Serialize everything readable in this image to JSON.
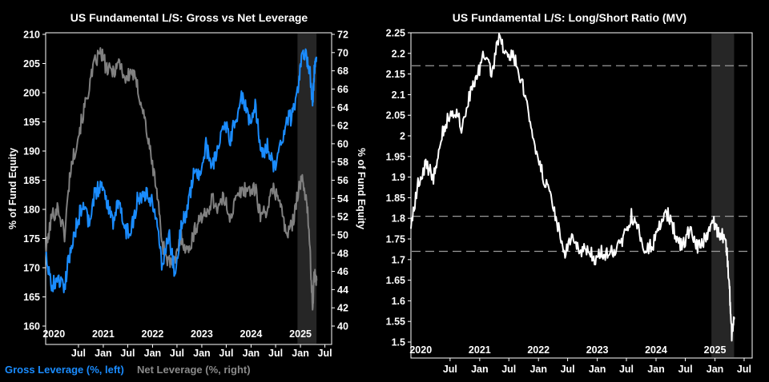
{
  "chart_data": [
    {
      "type": "line",
      "title": "US Fundamental L/S: Gross vs Net Leverage",
      "ylabel_left": "% of Fund Equity",
      "ylabel_right": "% of Fund Equity",
      "ylim_left": [
        160,
        210
      ],
      "ylim_right": [
        40,
        72
      ],
      "yticks_left": [
        "160",
        "165",
        "170",
        "175",
        "180",
        "185",
        "190",
        "195",
        "200",
        "205",
        "210"
      ],
      "yticks_right": [
        "40",
        "42",
        "44",
        "46",
        "48",
        "50",
        "52",
        "54",
        "56",
        "58",
        "60",
        "62",
        "64",
        "66",
        "68",
        "70",
        "72"
      ],
      "xlim": [
        "2019-11-01",
        "2025-08-20"
      ],
      "xticks_month": [
        "Jul",
        "Jan",
        "Jul",
        "Jan",
        "Jul",
        "Jan",
        "Jul",
        "Jan",
        "Jul",
        "Jan",
        "Jul"
      ],
      "xticks_year": [
        "2020",
        "2021",
        "2022",
        "2023",
        "2024",
        "2025"
      ],
      "legend_position": "bottom-left",
      "shaded_region": [
        "2024-12-10",
        "2025-04-30"
      ],
      "series": [
        {
          "name": "Gross Leverage (%, left)",
          "axis": "left",
          "color": "#1a8cff",
          "x": [
            "2019-11-01",
            "2019-12-15",
            "2020-02-01",
            "2020-03-20",
            "2020-05-01",
            "2020-06-15",
            "2020-08-01",
            "2020-09-15",
            "2020-11-01",
            "2020-12-15",
            "2021-02-01",
            "2021-03-15",
            "2021-05-01",
            "2021-06-15",
            "2021-08-01",
            "2021-09-15",
            "2021-11-01",
            "2021-12-15",
            "2022-02-01",
            "2022-03-15",
            "2022-05-01",
            "2022-06-15",
            "2022-08-01",
            "2022-09-15",
            "2022-11-01",
            "2022-12-15",
            "2023-02-01",
            "2023-03-15",
            "2023-05-01",
            "2023-06-15",
            "2023-08-01",
            "2023-09-15",
            "2023-11-01",
            "2023-12-15",
            "2024-02-01",
            "2024-03-15",
            "2024-05-01",
            "2024-06-15",
            "2024-08-01",
            "2024-09-15",
            "2024-11-01",
            "2024-12-15",
            "2025-01-15",
            "2025-02-15",
            "2025-03-10",
            "2025-04-01",
            "2025-04-15",
            "2025-05-01"
          ],
          "values": [
            173,
            167,
            168,
            167,
            173,
            177,
            181,
            178,
            183,
            184,
            181,
            178,
            182,
            176,
            177,
            182,
            183,
            182,
            179,
            170,
            176,
            169,
            177,
            180,
            186,
            186,
            191,
            187,
            191,
            195,
            192,
            196,
            200,
            195,
            198,
            189,
            191,
            187,
            190,
            195,
            196,
            201,
            207,
            206,
            204,
            198,
            204,
            206
          ]
        },
        {
          "name": "Net Leverage (%, right)",
          "axis": "right",
          "color": "#808080",
          "x": [
            "2019-11-01",
            "2019-12-15",
            "2020-02-01",
            "2020-03-20",
            "2020-05-01",
            "2020-06-15",
            "2020-08-01",
            "2020-09-15",
            "2020-11-01",
            "2020-12-15",
            "2021-02-01",
            "2021-03-15",
            "2021-05-01",
            "2021-06-15",
            "2021-08-01",
            "2021-09-15",
            "2021-11-01",
            "2021-12-15",
            "2022-02-01",
            "2022-03-15",
            "2022-05-01",
            "2022-06-15",
            "2022-08-01",
            "2022-09-15",
            "2022-11-01",
            "2022-12-15",
            "2023-02-01",
            "2023-03-15",
            "2023-05-01",
            "2023-06-15",
            "2023-08-01",
            "2023-09-15",
            "2023-11-01",
            "2023-12-15",
            "2024-02-01",
            "2024-03-15",
            "2024-05-01",
            "2024-06-15",
            "2024-08-01",
            "2024-09-15",
            "2024-11-01",
            "2024-12-15",
            "2025-01-15",
            "2025-02-15",
            "2025-03-10",
            "2025-04-01",
            "2025-04-15",
            "2025-05-01"
          ],
          "values": [
            48,
            52,
            53,
            50,
            57,
            60,
            63,
            66,
            69,
            70,
            68,
            68,
            69,
            67,
            68,
            66,
            63,
            59,
            55,
            49,
            47,
            47,
            50,
            48,
            50,
            52,
            52,
            54,
            53,
            54,
            52,
            54,
            55,
            55,
            55,
            52,
            53,
            55,
            54,
            50,
            51,
            55,
            56,
            54,
            49,
            42,
            46,
            45
          ]
        }
      ]
    },
    {
      "type": "line",
      "title": "US Fundamental L/S: Long/Short Ratio (MV)",
      "ylim": [
        1.5,
        2.25
      ],
      "yticks": [
        "1.5",
        "1.55",
        "1.6",
        "1.65",
        "1.7",
        "1.75",
        "1.8",
        "1.85",
        "1.9",
        "1.95",
        "2",
        "2.05",
        "2.1",
        "2.15",
        "2.2",
        "2.25"
      ],
      "xlim": [
        "2019-11-01",
        "2025-08-20"
      ],
      "xticks_month": [
        "Jul",
        "Jan",
        "Jul",
        "Jan",
        "Jul",
        "Jan",
        "Jul",
        "Jan",
        "Jul",
        "Jan",
        "Jul"
      ],
      "xticks_year": [
        "2020",
        "2021",
        "2022",
        "2023",
        "2024",
        "2025"
      ],
      "reference_lines": [
        2.17,
        1.805,
        1.72
      ],
      "shaded_region": [
        "2024-12-10",
        "2025-04-30"
      ],
      "series": [
        {
          "color": "#ffffff",
          "x": [
            "2019-11-01",
            "2019-12-15",
            "2020-02-01",
            "2020-03-20",
            "2020-05-01",
            "2020-06-15",
            "2020-08-01",
            "2020-09-15",
            "2020-11-01",
            "2020-12-15",
            "2021-02-01",
            "2021-03-15",
            "2021-05-01",
            "2021-06-15",
            "2021-08-01",
            "2021-09-15",
            "2021-11-01",
            "2021-12-15",
            "2022-02-01",
            "2022-03-15",
            "2022-05-01",
            "2022-06-15",
            "2022-08-01",
            "2022-09-15",
            "2022-11-01",
            "2022-12-15",
            "2023-02-01",
            "2023-03-15",
            "2023-05-01",
            "2023-06-15",
            "2023-08-01",
            "2023-09-15",
            "2023-11-01",
            "2023-12-15",
            "2024-02-01",
            "2024-03-15",
            "2024-05-01",
            "2024-06-15",
            "2024-08-01",
            "2024-09-15",
            "2024-11-01",
            "2024-12-15",
            "2025-01-15",
            "2025-02-15",
            "2025-03-10",
            "2025-04-01",
            "2025-04-15",
            "2025-05-01"
          ],
          "values": [
            1.78,
            1.88,
            1.93,
            1.9,
            1.99,
            2.04,
            2.06,
            2.02,
            2.1,
            2.14,
            2.2,
            2.15,
            2.24,
            2.2,
            2.19,
            2.14,
            2.05,
            1.97,
            1.9,
            1.85,
            1.78,
            1.72,
            1.75,
            1.71,
            1.73,
            1.7,
            1.72,
            1.71,
            1.73,
            1.75,
            1.81,
            1.77,
            1.72,
            1.74,
            1.79,
            1.81,
            1.76,
            1.73,
            1.78,
            1.73,
            1.75,
            1.8,
            1.77,
            1.76,
            1.75,
            1.63,
            1.52,
            1.56
          ]
        }
      ]
    }
  ]
}
